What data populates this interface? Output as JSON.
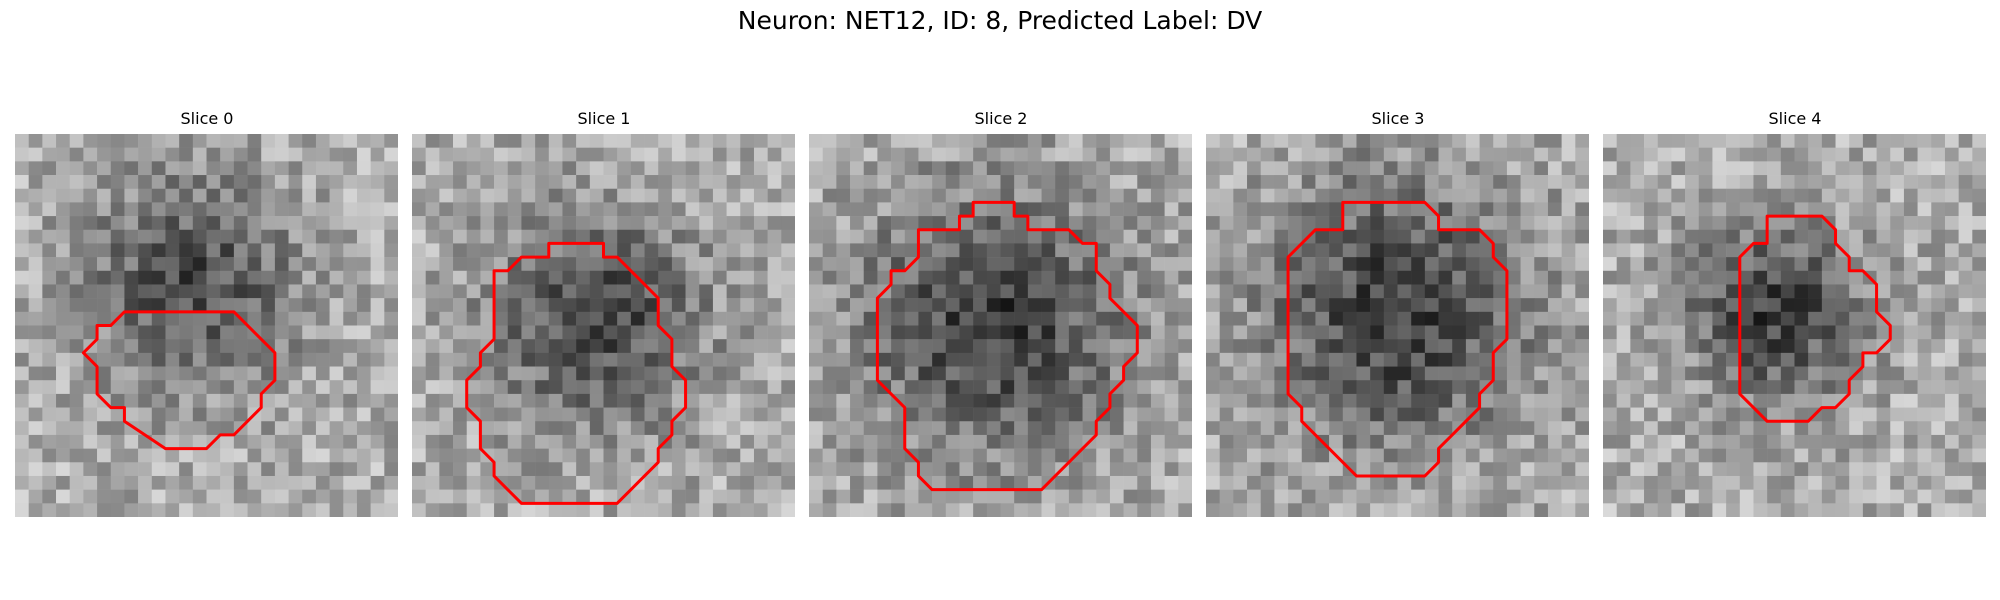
{
  "figure": {
    "suptitle": "Neuron: NET12, ID: 8, Predicted Label: DV",
    "colormap": "grayscale",
    "contour_color": "#ff0000",
    "grid_size": 28,
    "panels": [
      {
        "title": "Slice 0",
        "blob": {
          "cx": 13.0,
          "cy": 11.0,
          "r": 8.0,
          "depth": 0.38
        },
        "contour": [
          [
            9,
            13
          ],
          [
            16,
            13
          ],
          [
            19,
            16
          ],
          [
            19,
            18
          ],
          [
            18,
            19
          ],
          [
            18,
            20
          ],
          [
            16,
            22
          ],
          [
            15,
            22
          ],
          [
            14,
            23
          ],
          [
            11,
            23
          ],
          [
            8,
            21
          ],
          [
            8,
            20
          ],
          [
            7,
            20
          ],
          [
            6,
            19
          ],
          [
            6,
            17
          ],
          [
            5,
            16
          ],
          [
            6,
            15
          ],
          [
            6,
            14
          ],
          [
            7,
            14
          ],
          [
            8,
            13
          ]
        ]
      },
      {
        "title": "Slice 1",
        "blob": {
          "cx": 13.5,
          "cy": 13.5,
          "r": 8.0,
          "depth": 0.42
        },
        "contour": [
          [
            11,
            8
          ],
          [
            14,
            8
          ],
          [
            14,
            9
          ],
          [
            15,
            9
          ],
          [
            16,
            10
          ],
          [
            17,
            11
          ],
          [
            18,
            12
          ],
          [
            18,
            14
          ],
          [
            19,
            15
          ],
          [
            19,
            17
          ],
          [
            20,
            18
          ],
          [
            20,
            20
          ],
          [
            19,
            21
          ],
          [
            19,
            22
          ],
          [
            18,
            23
          ],
          [
            18,
            24
          ],
          [
            17,
            25
          ],
          [
            16,
            26
          ],
          [
            15,
            27
          ],
          [
            8,
            27
          ],
          [
            7,
            26
          ],
          [
            6,
            25
          ],
          [
            6,
            24
          ],
          [
            5,
            23
          ],
          [
            5,
            21
          ],
          [
            4,
            20
          ],
          [
            4,
            18
          ],
          [
            5,
            17
          ],
          [
            5,
            16
          ],
          [
            6,
            15
          ],
          [
            6,
            10
          ],
          [
            7,
            10
          ],
          [
            8,
            9
          ],
          [
            10,
            9
          ],
          [
            10,
            8
          ]
        ]
      },
      {
        "title": "Slice 2",
        "blob": {
          "cx": 13.5,
          "cy": 14.0,
          "r": 10.0,
          "depth": 0.45
        },
        "contour": [
          [
            12,
            5
          ],
          [
            15,
            5
          ],
          [
            15,
            6
          ],
          [
            16,
            6
          ],
          [
            16,
            7
          ],
          [
            19,
            7
          ],
          [
            20,
            8
          ],
          [
            21,
            8
          ],
          [
            21,
            10
          ],
          [
            22,
            11
          ],
          [
            22,
            12
          ],
          [
            23,
            13
          ],
          [
            24,
            14
          ],
          [
            24,
            16
          ],
          [
            23,
            17
          ],
          [
            23,
            18
          ],
          [
            22,
            19
          ],
          [
            22,
            20
          ],
          [
            21,
            21
          ],
          [
            21,
            22
          ],
          [
            20,
            23
          ],
          [
            19,
            24
          ],
          [
            18,
            25
          ],
          [
            17,
            26
          ],
          [
            9,
            26
          ],
          [
            8,
            25
          ],
          [
            8,
            24
          ],
          [
            7,
            23
          ],
          [
            7,
            20
          ],
          [
            6,
            19
          ],
          [
            5,
            18
          ],
          [
            5,
            12
          ],
          [
            6,
            11
          ],
          [
            6,
            10
          ],
          [
            7,
            10
          ],
          [
            8,
            9
          ],
          [
            8,
            7
          ],
          [
            11,
            7
          ],
          [
            11,
            6
          ],
          [
            12,
            6
          ]
        ]
      },
      {
        "title": "Slice 3",
        "blob": {
          "cx": 14.0,
          "cy": 13.0,
          "r": 10.0,
          "depth": 0.45
        },
        "contour": [
          [
            10,
            5
          ],
          [
            16,
            5
          ],
          [
            17,
            6
          ],
          [
            17,
            7
          ],
          [
            20,
            7
          ],
          [
            21,
            8
          ],
          [
            21,
            9
          ],
          [
            22,
            10
          ],
          [
            22,
            15
          ],
          [
            21,
            16
          ],
          [
            21,
            18
          ],
          [
            20,
            19
          ],
          [
            20,
            20
          ],
          [
            19,
            21
          ],
          [
            18,
            22
          ],
          [
            17,
            23
          ],
          [
            17,
            24
          ],
          [
            16,
            25
          ],
          [
            11,
            25
          ],
          [
            9,
            23
          ],
          [
            8,
            22
          ],
          [
            7,
            21
          ],
          [
            7,
            20
          ],
          [
            6,
            19
          ],
          [
            6,
            9
          ],
          [
            7,
            8
          ],
          [
            8,
            7
          ],
          [
            10,
            7
          ]
        ]
      },
      {
        "title": "Slice 4",
        "blob": {
          "cx": 12.5,
          "cy": 13.0,
          "r": 6.5,
          "depth": 0.45
        },
        "contour": [
          [
            12,
            6
          ],
          [
            16,
            6
          ],
          [
            17,
            7
          ],
          [
            17,
            8
          ],
          [
            18,
            9
          ],
          [
            18,
            10
          ],
          [
            19,
            10
          ],
          [
            20,
            11
          ],
          [
            20,
            13
          ],
          [
            21,
            14
          ],
          [
            21,
            15
          ],
          [
            20,
            16
          ],
          [
            19,
            16
          ],
          [
            19,
            17
          ],
          [
            18,
            18
          ],
          [
            18,
            19
          ],
          [
            17,
            20
          ],
          [
            16,
            20
          ],
          [
            15,
            21
          ],
          [
            12,
            21
          ],
          [
            11,
            20
          ],
          [
            10,
            19
          ],
          [
            10,
            9
          ],
          [
            11,
            8
          ],
          [
            12,
            8
          ]
        ]
      }
    ]
  }
}
